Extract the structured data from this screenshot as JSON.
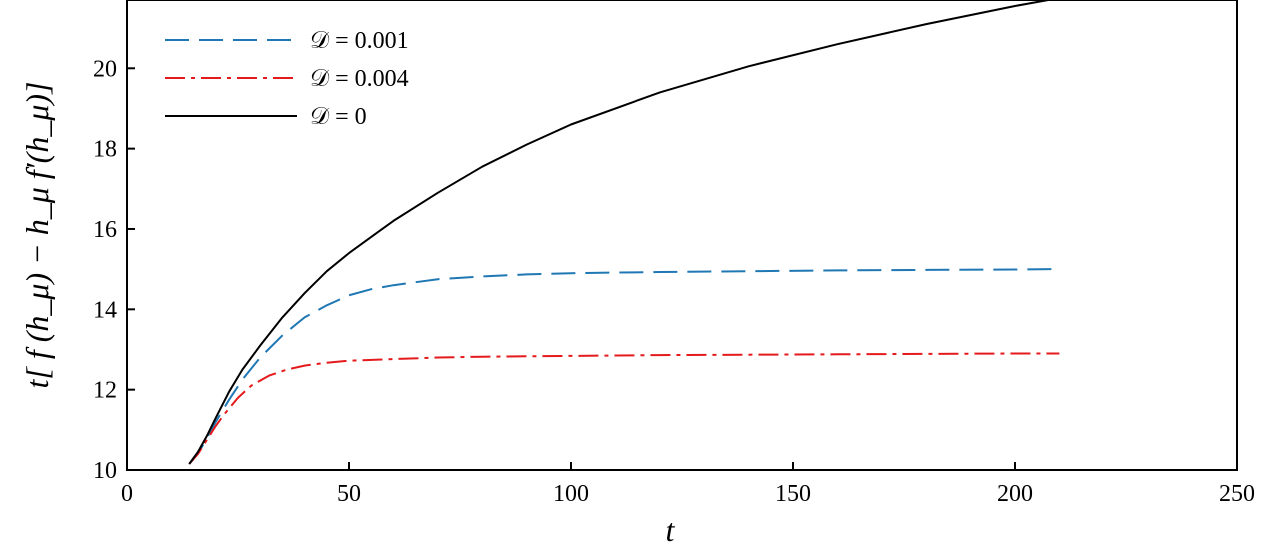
{
  "chart_data": {
    "type": "line",
    "xlabel": "t",
    "ylabel": "t[ f (h_μ) − h_μ f′(h_μ)]",
    "xlim": [
      0,
      250
    ],
    "ylim": [
      10,
      21.7
    ],
    "xticks": [
      0,
      50,
      100,
      150,
      200,
      250
    ],
    "yticks": [
      10,
      12,
      14,
      16,
      18,
      20
    ],
    "grid": false,
    "legend_position": "top-left",
    "series": [
      {
        "name": "𝒟 = 0.001",
        "color": "#1f77b4",
        "dash": "dashed",
        "x": [
          14,
          16,
          18,
          20,
          23,
          26,
          30,
          35,
          40,
          45,
          50,
          55,
          60,
          70,
          80,
          90,
          100,
          120,
          140,
          160,
          180,
          200,
          210
        ],
        "y": [
          10.15,
          10.4,
          10.8,
          11.2,
          11.75,
          12.25,
          12.8,
          13.35,
          13.8,
          14.1,
          14.35,
          14.5,
          14.6,
          14.75,
          14.82,
          14.87,
          14.9,
          14.93,
          14.95,
          14.97,
          14.98,
          14.99,
          15.0
        ]
      },
      {
        "name": "𝒟 = 0.004",
        "color": "#e41a1c",
        "dash": "dashdot",
        "x": [
          14,
          16,
          18,
          20,
          22,
          25,
          28,
          32,
          36,
          40,
          45,
          50,
          60,
          70,
          80,
          100,
          120,
          140,
          160,
          180,
          200,
          210
        ],
        "y": [
          10.15,
          10.4,
          10.75,
          11.1,
          11.4,
          11.8,
          12.1,
          12.35,
          12.5,
          12.6,
          12.67,
          12.72,
          12.76,
          12.8,
          12.82,
          12.84,
          12.86,
          12.87,
          12.88,
          12.89,
          12.9,
          12.9
        ]
      },
      {
        "name": "𝒟 = 0",
        "color": "#000000",
        "dash": "solid",
        "x": [
          14,
          16,
          18,
          20,
          23,
          26,
          30,
          35,
          40,
          45,
          50,
          60,
          70,
          80,
          90,
          100,
          120,
          140,
          160,
          180,
          200,
          210
        ],
        "y": [
          10.15,
          10.45,
          10.85,
          11.3,
          11.95,
          12.5,
          13.1,
          13.8,
          14.4,
          14.95,
          15.4,
          16.2,
          16.9,
          17.55,
          18.1,
          18.6,
          19.4,
          20.05,
          20.6,
          21.1,
          21.55,
          21.75
        ]
      }
    ]
  }
}
